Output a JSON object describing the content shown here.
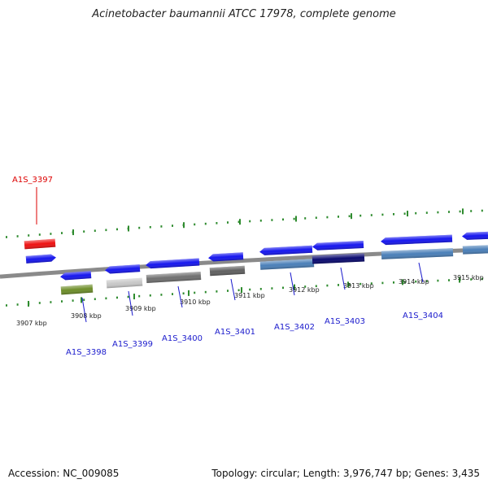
{
  "title": "Acinetobacter baumannii ATCC 17978, complete genome",
  "footer": {
    "accession": "Accession: NC_009085",
    "topology": "Topology: circular; Length: 3,976,747 bp; Genes: 3,435"
  },
  "colors": {
    "backbone": "#8a8a8a",
    "tick": "#2e8b2e",
    "label_default": "#1a1acc",
    "label_selected": "#dd0000",
    "gene_reverse": "#1616ee"
  },
  "ticks": [
    "3907 kbp",
    "3908 kbp",
    "3909 kbp",
    "3910 kbp",
    "3911 kbp",
    "3912 kbp",
    "3913 kbp",
    "3914 kbp",
    "3915 kbp"
  ],
  "genes": [
    {
      "label": "A1S_3397",
      "strand": "forward",
      "color": "#ee1111",
      "selected": true
    },
    {
      "label": "A1S_3398",
      "strand": "reverse",
      "color": "#6e8e2a"
    },
    {
      "label": "A1S_3399",
      "strand": "reverse",
      "color": "#c8c8c8"
    },
    {
      "label": "A1S_3400",
      "strand": "reverse",
      "color": "#707070"
    },
    {
      "label": "A1S_3401",
      "strand": "reverse",
      "color": "#606060"
    },
    {
      "label": "A1S_3402",
      "strand": "reverse",
      "color": "#4a7fb8"
    },
    {
      "label": "A1S_3403",
      "strand": "reverse",
      "color": "#0a0a70"
    },
    {
      "label": "A1S_3404",
      "strand": "reverse",
      "color": "#4a7fb8"
    }
  ]
}
